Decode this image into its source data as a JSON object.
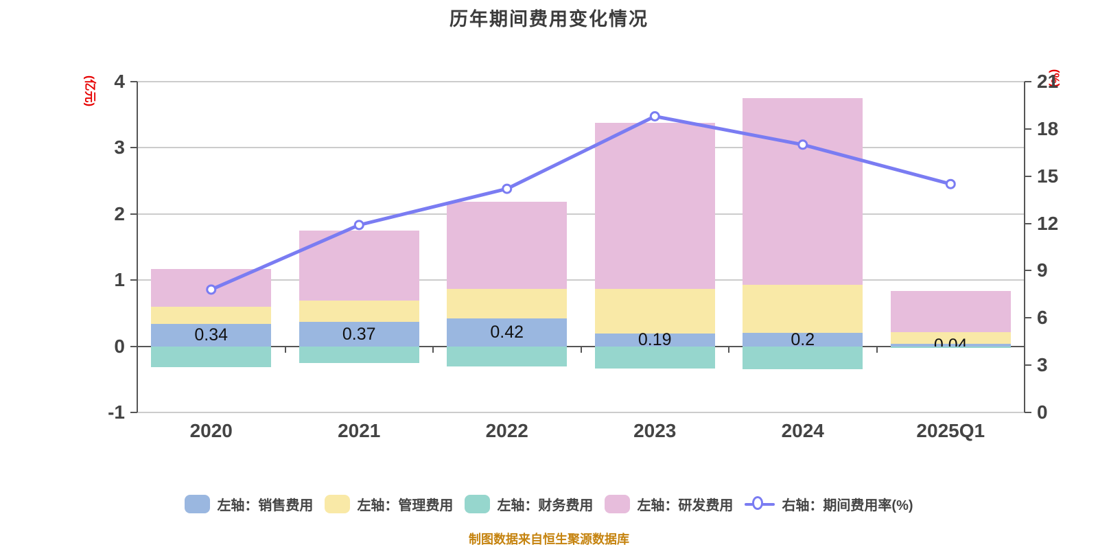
{
  "title": "历年期间费用变化情况",
  "source_note": "制图数据来自恒生聚源数据库",
  "colors": {
    "sales": "#9ab7e0",
    "admin": "#f9e9a7",
    "finance": "#96d6cd",
    "rnd": "#e7bddc",
    "line": "#7a7cf2",
    "marker_fill": "#ffffff",
    "grid": "#cccccc",
    "axis": "#555555",
    "tick_label": "#444444",
    "bar_label": "#111111",
    "title": "#3c3c3c",
    "legend_text": "#444444",
    "source_note": "#c5830f",
    "axis_unit": "#e60000",
    "background": "#ffffff"
  },
  "left_axis": {
    "unit": "(亿元)",
    "min": -1,
    "max": 4,
    "ticks": [
      "4",
      "3",
      "2",
      "1",
      "0",
      "-1"
    ]
  },
  "right_axis": {
    "unit": "(%)",
    "min": 0,
    "max": 21,
    "ticks": [
      "21",
      "18",
      "15",
      "12",
      "9",
      "6",
      "3",
      "0"
    ]
  },
  "legend": [
    {
      "key": "sales",
      "label": "左轴：销售费用",
      "kind": "bar"
    },
    {
      "key": "admin",
      "label": "左轴：管理费用",
      "kind": "bar"
    },
    {
      "key": "finance",
      "label": "左轴：财务费用",
      "kind": "bar"
    },
    {
      "key": "rnd",
      "label": "左轴：研发费用",
      "kind": "bar"
    },
    {
      "key": "expense-ratio",
      "label": "右轴：期间费用率(%)",
      "kind": "line"
    }
  ],
  "chart_data": {
    "type": "bar",
    "subtype": "stacked-bars-with-right-axis-line",
    "title": "历年期间费用变化情况",
    "categories": [
      "2020",
      "2021",
      "2022",
      "2023",
      "2024",
      "2025Q1"
    ],
    "series": [
      {
        "key": "sales",
        "name": "左轴：销售费用",
        "type": "bar",
        "axis": "left",
        "values": [
          0.34,
          0.37,
          0.42,
          0.19,
          0.2,
          0.04
        ]
      },
      {
        "key": "admin",
        "name": "左轴：管理费用",
        "type": "bar",
        "axis": "left",
        "values": [
          0.26,
          0.32,
          0.45,
          0.68,
          0.73,
          0.17
        ]
      },
      {
        "key": "finance",
        "name": "左轴：财务费用",
        "type": "bar",
        "axis": "left",
        "values": [
          -0.32,
          -0.25,
          -0.31,
          -0.34,
          -0.35,
          -0.02
        ]
      },
      {
        "key": "rnd",
        "name": "左轴：研发费用",
        "type": "bar",
        "axis": "left",
        "values": [
          0.57,
          1.06,
          1.31,
          2.51,
          2.82,
          0.63
        ]
      },
      {
        "key": "expense-ratio",
        "name": "右轴：期间费用率(%)",
        "type": "line",
        "axis": "right",
        "values": [
          7.8,
          11.9,
          14.2,
          18.8,
          17.0,
          14.5
        ]
      }
    ],
    "bar_value_labels": [
      "0.34",
      "0.37",
      "0.42",
      "0.19",
      "0.2",
      "0.04"
    ],
    "ylim_left": [
      -1,
      4
    ],
    "ylim_right": [
      0,
      21
    ],
    "grid": true,
    "legend_position": "bottom"
  }
}
